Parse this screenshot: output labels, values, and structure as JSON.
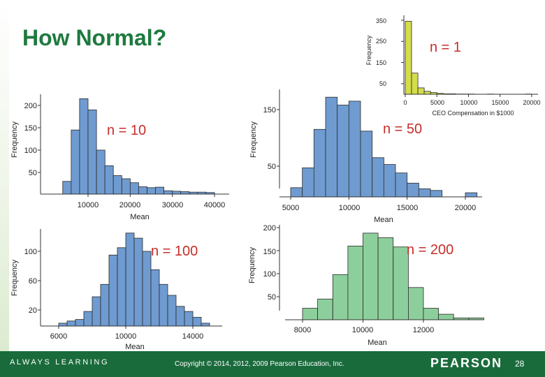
{
  "slide": {
    "title": "How Normal?"
  },
  "footer": {
    "left": "ALWAYS LEARNING",
    "center": "Copyright © 2014, 2012, 2009 Pearson Education, Inc.",
    "brand": "PEARSON",
    "page": "28"
  },
  "colors": {
    "blue_bar": "#6f9bd0",
    "yellow_bar": "#d4dd4a",
    "green_bar": "#8dcf9c",
    "label_red": "#c62e2a",
    "title_green": "#1d7a3e",
    "footer_green": "#1a6b3c"
  },
  "chart_data": [
    {
      "id": "n1",
      "type": "bar",
      "label": "n = 1",
      "xlabel": "CEO Compensation in $1000",
      "ylabel": "Frequency",
      "xlim": [
        0,
        20000
      ],
      "ylim": [
        0,
        360
      ],
      "xticks": [
        0,
        5000,
        10000,
        15000,
        20000
      ],
      "xtick_labels": [
        "0",
        "5000",
        "10000",
        "15000",
        "20000"
      ],
      "yticks": [
        50,
        150,
        250,
        350
      ],
      "ytick_labels": [
        "50",
        "150",
        "250",
        "350"
      ],
      "bins": [
        [
          0,
          1000,
          345
        ],
        [
          1000,
          2000,
          100
        ],
        [
          2000,
          3000,
          30
        ],
        [
          3000,
          4000,
          14
        ],
        [
          4000,
          5000,
          8
        ],
        [
          5000,
          6000,
          4
        ],
        [
          6000,
          7000,
          2
        ],
        [
          7000,
          8000,
          2
        ],
        [
          8000,
          9000,
          1
        ],
        [
          9000,
          10000,
          1
        ],
        [
          10000,
          11000,
          1
        ],
        [
          13000,
          14000,
          1
        ],
        [
          19000,
          20000,
          1
        ]
      ]
    },
    {
      "id": "n10",
      "type": "bar",
      "label": "n = 10",
      "xlabel": "Mean",
      "ylabel": "Frequency",
      "xlim": [
        2000,
        42000
      ],
      "ylim": [
        0,
        222
      ],
      "xticks": [
        10000,
        20000,
        30000,
        40000
      ],
      "xtick_labels": [
        "10000",
        "20000",
        "30000",
        "40000"
      ],
      "yticks": [
        50,
        100,
        150,
        200
      ],
      "ytick_labels": [
        "50",
        "100",
        "150",
        "200"
      ],
      "bins": [
        [
          4000,
          6000,
          30
        ],
        [
          6000,
          8000,
          145
        ],
        [
          8000,
          10000,
          215
        ],
        [
          10000,
          12000,
          190
        ],
        [
          12000,
          14000,
          100
        ],
        [
          14000,
          16000,
          65
        ],
        [
          16000,
          18000,
          43
        ],
        [
          18000,
          20000,
          36
        ],
        [
          20000,
          22000,
          27
        ],
        [
          22000,
          24000,
          18
        ],
        [
          24000,
          26000,
          16
        ],
        [
          26000,
          28000,
          17
        ],
        [
          28000,
          30000,
          9
        ],
        [
          30000,
          32000,
          8
        ],
        [
          32000,
          34000,
          7
        ],
        [
          34000,
          36000,
          6
        ],
        [
          36000,
          38000,
          6
        ],
        [
          38000,
          40000,
          5
        ]
      ]
    },
    {
      "id": "n50",
      "type": "bar",
      "label": "n = 50",
      "xlabel": "Mean",
      "ylabel": "Frequency",
      "xlim": [
        4600,
        21000
      ],
      "ylim": [
        0,
        180
      ],
      "xticks": [
        5000,
        10000,
        15000,
        20000
      ],
      "xtick_labels": [
        "5000",
        "10000",
        "15000",
        "20000"
      ],
      "yticks": [
        50,
        150
      ],
      "ytick_labels": [
        "50",
        "150"
      ],
      "bins": [
        [
          5000,
          6000,
          12
        ],
        [
          6000,
          7000,
          47
        ],
        [
          7000,
          8000,
          115
        ],
        [
          8000,
          9000,
          172
        ],
        [
          9000,
          10000,
          158
        ],
        [
          10000,
          11000,
          165
        ],
        [
          11000,
          12000,
          112
        ],
        [
          12000,
          13000,
          65
        ],
        [
          13000,
          14000,
          53
        ],
        [
          14000,
          15000,
          38
        ],
        [
          15000,
          16000,
          20
        ],
        [
          16000,
          17000,
          10
        ],
        [
          17000,
          18000,
          7
        ],
        [
          20000,
          21000,
          3
        ]
      ]
    },
    {
      "id": "n100",
      "type": "bar",
      "label": "n = 100",
      "xlabel": "Mean",
      "ylabel": "Frequency",
      "xlim": [
        5500,
        15700
      ],
      "ylim": [
        0,
        128
      ],
      "xticks": [
        6000,
        10000,
        14000
      ],
      "xtick_labels": [
        "6000",
        "10000",
        "14000"
      ],
      "yticks": [
        20,
        60,
        100
      ],
      "ytick_labels": [
        "20",
        "60",
        "100"
      ],
      "bins": [
        [
          6000,
          6500,
          2
        ],
        [
          6500,
          7000,
          5
        ],
        [
          7000,
          7500,
          7
        ],
        [
          7500,
          8000,
          18
        ],
        [
          8000,
          8500,
          38
        ],
        [
          8500,
          9000,
          55
        ],
        [
          9000,
          9500,
          95
        ],
        [
          9500,
          10000,
          105
        ],
        [
          10000,
          10500,
          125
        ],
        [
          10500,
          11000,
          118
        ],
        [
          11000,
          11500,
          100
        ],
        [
          11500,
          12000,
          75
        ],
        [
          12000,
          12500,
          55
        ],
        [
          12500,
          13000,
          40
        ],
        [
          13000,
          13500,
          25
        ],
        [
          13500,
          14000,
          18
        ],
        [
          14000,
          14500,
          10
        ],
        [
          14500,
          15000,
          2
        ]
      ]
    },
    {
      "id": "n200",
      "type": "bar",
      "label": "n = 200",
      "xlabel": "Mean",
      "ylabel": "Frequency",
      "xlim": [
        7500,
        14200
      ],
      "ylim": [
        0,
        210
      ],
      "xticks": [
        8000,
        10000,
        12000
      ],
      "xtick_labels": [
        "8000",
        "10000",
        "12000"
      ],
      "yticks": [
        50,
        100,
        150,
        200
      ],
      "ytick_labels": [
        "50",
        "100",
        "150",
        "200"
      ],
      "bins": [
        [
          8000,
          8500,
          25
        ],
        [
          8500,
          9000,
          45
        ],
        [
          9000,
          9500,
          98
        ],
        [
          9500,
          10000,
          160
        ],
        [
          10000,
          10500,
          188
        ],
        [
          10500,
          11000,
          178
        ],
        [
          11000,
          11500,
          158
        ],
        [
          11500,
          12000,
          70
        ],
        [
          12000,
          12500,
          25
        ],
        [
          12500,
          13000,
          12
        ],
        [
          13000,
          13500,
          4
        ],
        [
          13500,
          14000,
          4
        ]
      ]
    }
  ]
}
